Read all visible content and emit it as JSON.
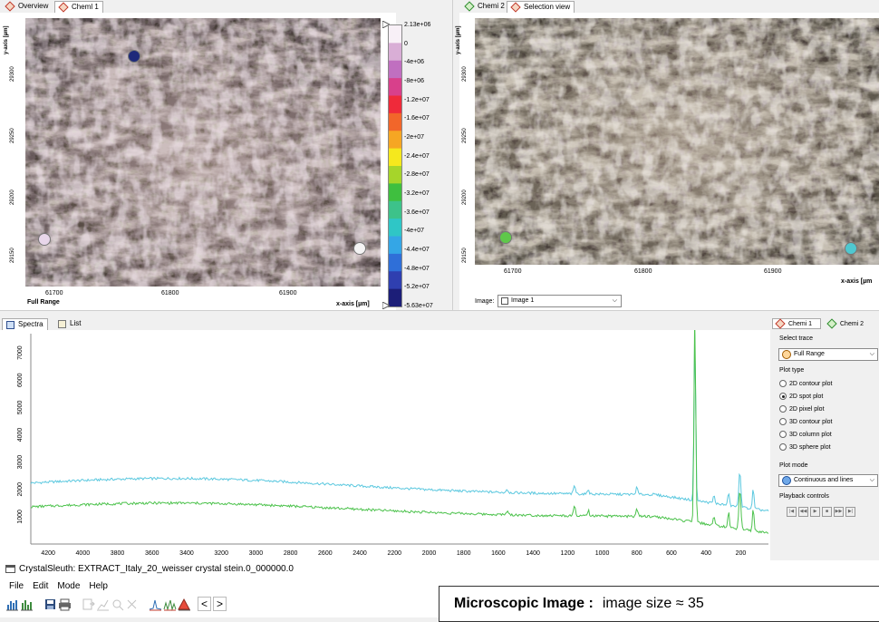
{
  "left_panel": {
    "tabs": [
      {
        "label": "Overview"
      },
      {
        "label": "Cheml 1"
      }
    ],
    "x_ticks": [
      "61700",
      "61800",
      "61900"
    ],
    "x_axis_label": "x-axis [µm]",
    "y_axis_label": "y-axis [µm]",
    "y_ticks": [
      "29300",
      "29250",
      "29200",
      "29150"
    ],
    "range_label": "Full Range",
    "colorbar": {
      "labels": [
        "2.13e+06",
        "0",
        "-4e+06",
        "-8e+06",
        "-1.2e+07",
        "-1.6e+07",
        "-2e+07",
        "-2.4e+07",
        "-2.8e+07",
        "-3.2e+07",
        "-3.6e+07",
        "-4e+07",
        "-4.4e+07",
        "-4.8e+07",
        "-5.2e+07",
        "-5.63e+07"
      ],
      "colors": [
        "#f8f0f7",
        "#d9aed6",
        "#c06fc0",
        "#d8408b",
        "#ef2a3a",
        "#f2662a",
        "#f6a623",
        "#f5e81d",
        "#a6d52a",
        "#3fbf3f",
        "#3dc28a",
        "#2fc6c6",
        "#34a6e6",
        "#2f6fd8",
        "#2f3fb0",
        "#1c1e78"
      ]
    }
  },
  "right_panel": {
    "tabs": [
      {
        "label": "Chemi 2"
      },
      {
        "label": "Selection view"
      }
    ],
    "x_ticks": [
      "61700",
      "61800",
      "61900"
    ],
    "x_axis_label": "x-axis [µm",
    "y_axis_label": "y-axis [µm]",
    "y_ticks": [
      "29300",
      "29250",
      "29200",
      "29150"
    ],
    "image_label": "Image:",
    "image_value": "Image 1"
  },
  "spectra": {
    "tabs": [
      {
        "label": "Spectra"
      },
      {
        "label": "List"
      }
    ],
    "y_ticks": [
      "7000",
      "6000",
      "5000",
      "4000",
      "3000",
      "2000",
      "1000"
    ],
    "x_ticks": [
      "4200",
      "4000",
      "3800",
      "3600",
      "3400",
      "3200",
      "3000",
      "2800",
      "2600",
      "2400",
      "2200",
      "2000",
      "1800",
      "1600",
      "1400",
      "1200",
      "1000",
      "800",
      "600",
      "400",
      "200"
    ],
    "series_colors": [
      "#5bc8df",
      "#4cc24c"
    ]
  },
  "controls": {
    "tabs": [
      {
        "label": "Chemi 1"
      },
      {
        "label": "Chemi 2"
      }
    ],
    "select_trace_label": "Select trace",
    "select_trace_value": "Full Range",
    "plot_type_label": "Plot type",
    "plot_types": [
      {
        "label": "2D contour plot",
        "selected": false
      },
      {
        "label": "2D spot plot",
        "selected": true
      },
      {
        "label": "2D pixel plot",
        "selected": false
      },
      {
        "label": "3D contour plot",
        "selected": false
      },
      {
        "label": "3D column plot",
        "selected": false
      },
      {
        "label": "3D sphere plot",
        "selected": false
      }
    ],
    "plot_mode_label": "Plot mode",
    "plot_mode_value": "Continuous and lines",
    "playback_label": "Playback controls"
  },
  "app": {
    "title": "CrystalSleuth: EXTRACT_Italy_20_weisser crystal stein.0_000000.0",
    "menu": [
      "File",
      "Edit",
      "Mode",
      "Help"
    ]
  },
  "caption": {
    "title": "Microscopic Image :",
    "text": "image size  ≈  35"
  }
}
